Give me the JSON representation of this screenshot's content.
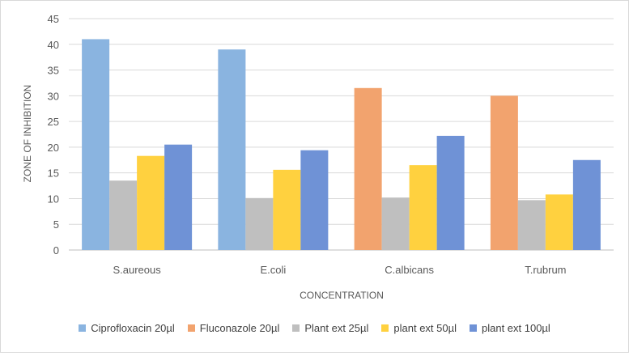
{
  "chart_data": {
    "type": "bar",
    "title": "",
    "xlabel": "CONCENTRATION",
    "ylabel": "ZONE OF INHIBITION",
    "categories": [
      "S.aureous",
      "E.coli",
      "C.albicans",
      "T.rubrum"
    ],
    "ylim": [
      0,
      45
    ],
    "yticks": [
      0,
      5,
      10,
      15,
      20,
      25,
      30,
      35,
      40,
      45
    ],
    "grid": true,
    "legend_position": "bottom",
    "series": [
      {
        "name": "Ciprofloxacin 20µl",
        "color": "#8ab4e0",
        "values": [
          41,
          39,
          null,
          null
        ]
      },
      {
        "name": "Fluconazole 20µl",
        "color": "#f2a36e",
        "values": [
          null,
          null,
          31.5,
          30
        ]
      },
      {
        "name": "Plant ext 25µl",
        "color": "#bfbfbf",
        "values": [
          13.5,
          10.1,
          10.2,
          9.7
        ]
      },
      {
        "name": "plant ext 50µl",
        "color": "#ffd13f",
        "values": [
          18.3,
          15.6,
          16.5,
          10.8
        ]
      },
      {
        "name": "plant ext 100µl",
        "color": "#6f92d6",
        "values": [
          20.5,
          19.4,
          22.2,
          17.5
        ]
      }
    ]
  }
}
